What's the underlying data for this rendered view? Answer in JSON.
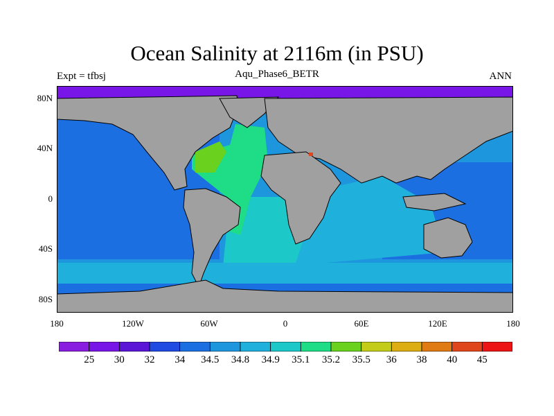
{
  "header": {
    "title": "Ocean Salinity at 2116m (in PSU)",
    "subtitle": "Aqu_Phase6_BETR",
    "left_label": "Expt = tfbsj",
    "right_label": "ANN"
  },
  "map": {
    "lat_labels": [
      "80N",
      "40N",
      "0",
      "40S",
      "80S"
    ],
    "lon_labels": [
      "180",
      "120W",
      "60W",
      "0",
      "60E",
      "120E",
      "180"
    ],
    "land_color": "#a0a0a0",
    "coast_color": "#000000"
  },
  "colorbar": {
    "labels": [
      "25",
      "30",
      "32",
      "34",
      "34.5",
      "34.8",
      "34.9",
      "35.1",
      "35.2",
      "35.5",
      "36",
      "38",
      "40",
      "45"
    ],
    "colors": [
      "#8a1ee0",
      "#7716e6",
      "#5a15d6",
      "#1f4be3",
      "#1c6fe0",
      "#1e96dd",
      "#1fb0dc",
      "#1dc8c8",
      "#1fdc86",
      "#6ad21e",
      "#c4cc1a",
      "#dcae14",
      "#e07a12",
      "#e0461c",
      "#ec1414"
    ]
  }
}
